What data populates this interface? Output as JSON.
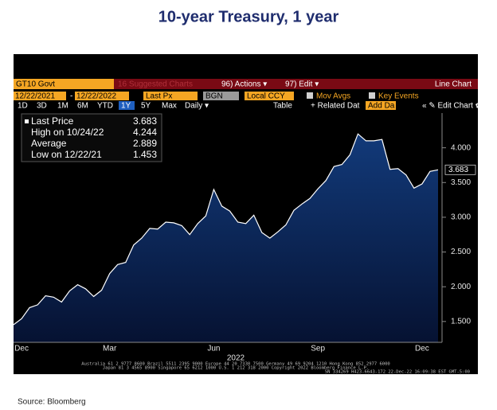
{
  "chart_data": {
    "type": "area",
    "title": "10-year Treasury, 1 year",
    "categories": [
      null,
      "Dec",
      null,
      null,
      null,
      null,
      null,
      null,
      null,
      null,
      null,
      null,
      "Mar",
      null,
      null,
      null,
      null,
      null,
      null,
      null,
      null,
      null,
      null,
      null,
      null,
      "Jun",
      null,
      null,
      null,
      null,
      null,
      null,
      null,
      null,
      null,
      null,
      null,
      null,
      "Sep",
      null,
      null,
      null,
      null,
      null,
      null,
      null,
      null,
      null,
      null,
      null,
      null,
      "Dec",
      null,
      null
    ],
    "values": [
      1.453,
      1.54,
      1.7,
      1.74,
      1.87,
      1.85,
      1.78,
      1.94,
      2.03,
      1.97,
      1.86,
      1.95,
      2.19,
      2.32,
      2.35,
      2.6,
      2.7,
      2.84,
      2.83,
      2.93,
      2.92,
      2.88,
      2.75,
      2.91,
      3.02,
      3.4,
      3.16,
      3.09,
      2.93,
      2.91,
      3.03,
      2.78,
      2.7,
      2.79,
      2.89,
      3.1,
      3.19,
      3.27,
      3.41,
      3.53,
      3.73,
      3.76,
      3.9,
      4.2,
      4.1,
      4.1,
      4.12,
      3.69,
      3.7,
      3.61,
      3.42,
      3.48,
      3.66,
      3.683
    ],
    "color": "#ffffff",
    "ylim": [
      1.2,
      4.5
    ],
    "yticks": [
      {
        "value": 1.5,
        "label": "1.500"
      },
      {
        "value": 2,
        "label": "2.000"
      },
      {
        "value": 2.5,
        "label": "2.500"
      },
      {
        "value": 3,
        "label": "3.000"
      },
      {
        "value": 3.5,
        "label": "3.500"
      },
      {
        "value": 4,
        "label": "4.000"
      }
    ],
    "grid": false,
    "x_year_label": "2022",
    "legend_stats": [
      {
        "label": "Last Price",
        "value": 3.683
      },
      {
        "label": "High on 10/24/22",
        "value": 4.244
      },
      {
        "label": "Average",
        "value": 2.889
      },
      {
        "label": "Low on 12/22/21",
        "value": 1.453
      }
    ]
  },
  "terminal": {
    "ticker": "GT10 Govt",
    "suggested": "16 Suggested Charts",
    "actions": "96) Actions ▾",
    "edit": "97) Edit ▾",
    "chart_kind": "Line Chart",
    "start_date": "12/22/2021",
    "end_date": "12/22/2022",
    "field": "Last Px",
    "pricing_source": "BGN",
    "currency": "Local CCY",
    "mov_avgs": "Mov Avgs",
    "key_events": "Key Events",
    "periods": [
      "1D",
      "3D",
      "1M",
      "6M",
      "YTD",
      "1Y",
      "5Y",
      "Max",
      "Daily ▾"
    ],
    "table": "Table",
    "related": "+ Related Dat",
    "add_data": "Add Da",
    "edit_chart": "« ✎ Edit Chart ✿",
    "footer": [
      "Australia 61 2 9777 8600 Brazil 5511 2395 9000 Europe 44 20 7330 7500 Germany 49 69 9204 1210 Hong Kong 852 2977 6000",
      "Japan 81 3 4565 8900   Singapore 65 6212 1000   U.S. 1 212 318 2000   Copyright 2022 Bloomberg Finance L.P.",
      "SN 334269 H423-6643-172 22-Dec-22 16:09:38 EST  GMT-5:00"
    ]
  },
  "source": "Source: Bloomberg"
}
